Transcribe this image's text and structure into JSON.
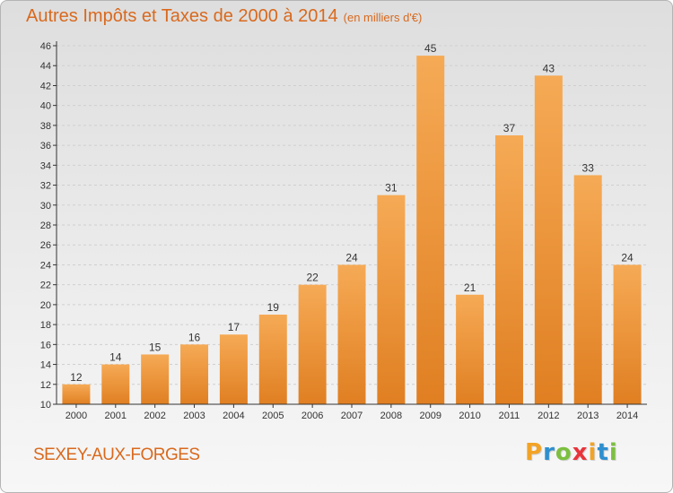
{
  "title": "Autres Impôts et Taxes de 2000 à 2014",
  "subtitle": "(en milliers d'€)",
  "town": "SEXEY-AUX-FORGES",
  "logo": {
    "letters": [
      "P",
      "r",
      "o",
      "x",
      "i",
      "t",
      "i"
    ],
    "colors": [
      "#f2a326",
      "#2e8fcf",
      "#7cbf3f",
      "#e8343a",
      "#f2a326",
      "#2e8fcf",
      "#7cbf3f"
    ]
  },
  "colors": {
    "bar_light": "#f6aa55",
    "bar_dark": "#e07f22",
    "text": "#d9691d",
    "axis": "#333333"
  },
  "chart_data": {
    "type": "bar",
    "categories": [
      "2000",
      "2001",
      "2002",
      "2003",
      "2004",
      "2005",
      "2006",
      "2007",
      "2008",
      "2009",
      "2010",
      "2011",
      "2012",
      "2013",
      "2014"
    ],
    "values": [
      12,
      14,
      15,
      16,
      17,
      19,
      22,
      24,
      31,
      45,
      21,
      37,
      43,
      33,
      24
    ],
    "title": "Autres Impôts et Taxes de 2000 à 2014",
    "subtitle": "(en milliers d'€)",
    "ylim": [
      10,
      46
    ],
    "yticks": [
      10,
      12,
      14,
      16,
      18,
      20,
      22,
      24,
      26,
      28,
      30,
      32,
      34,
      36,
      38,
      40,
      42,
      44,
      46
    ],
    "grid": true,
    "legend": "none"
  }
}
